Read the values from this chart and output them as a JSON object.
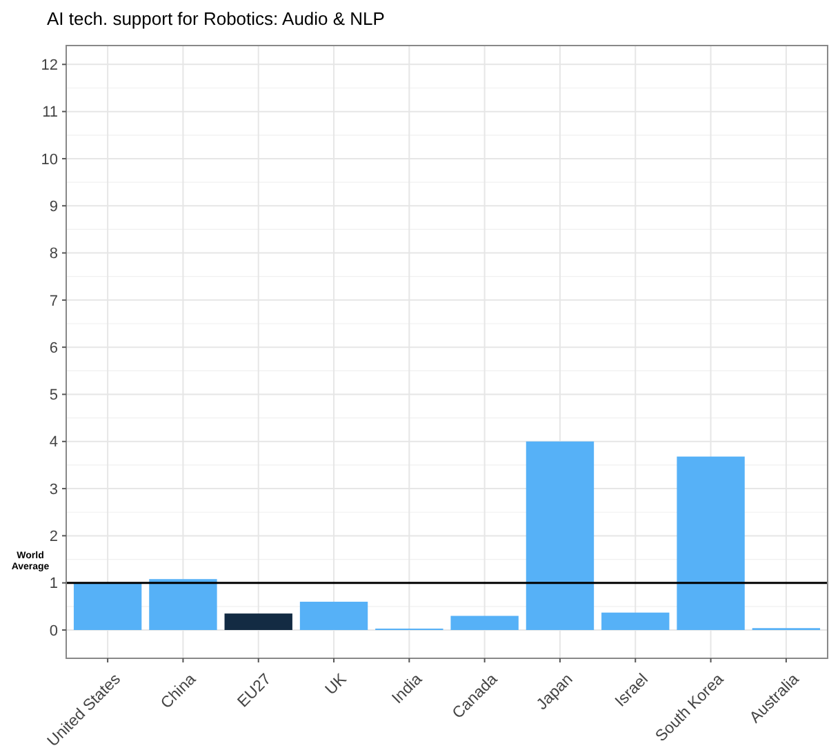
{
  "chart_data": {
    "type": "bar",
    "title": "AI tech. support for Robotics: Audio & NLP",
    "categories": [
      "United States",
      "China",
      "EU27",
      "UK",
      "India",
      "Canada",
      "Japan",
      "Israel",
      "South Korea",
      "Australia"
    ],
    "values": [
      1.0,
      1.08,
      0.35,
      0.6,
      0.03,
      0.3,
      4.0,
      0.37,
      3.68,
      0.04
    ],
    "colors": [
      "#56b1f7",
      "#56b1f7",
      "#132b43",
      "#56b1f7",
      "#56b1f7",
      "#56b1f7",
      "#56b1f7",
      "#56b1f7",
      "#56b1f7",
      "#56b1f7"
    ],
    "ylim": [
      -0.6,
      12.4
    ],
    "yticks": [
      0,
      1,
      2,
      3,
      4,
      5,
      6,
      7,
      8,
      9,
      10,
      11,
      12
    ],
    "grid": true,
    "ref_lines": [
      {
        "axis": "y",
        "value": 1,
        "label": "World Average",
        "color": "#000000"
      }
    ]
  }
}
